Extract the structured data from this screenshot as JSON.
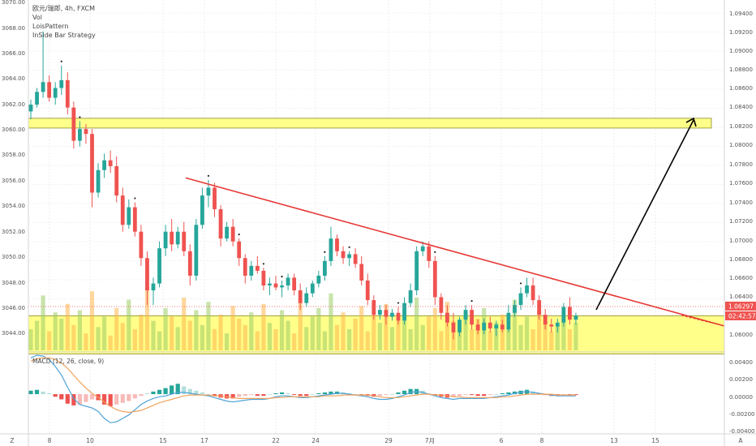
{
  "legend": {
    "symbol": "欧元/瑞郎, 4h, FXCM",
    "vol": "Vol",
    "pattern": "LoisPattern",
    "strategy": "InSide Bar Strategy",
    "macd": "MACD (12, 26, close, 9)"
  },
  "left_axis": {
    "ticks": [
      "3070.00",
      "3068.00",
      "3066.00",
      "3064.00",
      "3062.00",
      "3060.00",
      "3058.00",
      "3056.00",
      "3054.00",
      "3052.00",
      "3050.00",
      "3048.00",
      "3046.00",
      "3044.00"
    ]
  },
  "right_axis": {
    "ticks": [
      "1.09400",
      "1.09200",
      "1.09000",
      "1.08800",
      "1.08600",
      "1.08400",
      "1.08200",
      "1.08000",
      "1.07800",
      "1.07600",
      "1.07400",
      "1.07200",
      "1.07000",
      "1.06800",
      "1.06600",
      "1.06400",
      "1.06000"
    ],
    "price_label": "1.06297",
    "countdown_label": "02:42:57",
    "price_color": "#ef5350",
    "macd_ticks": [
      "0.00400",
      "0.00200",
      "0.00000",
      "-0.00200",
      "-0.00400"
    ],
    "corner_label": "A"
  },
  "x_axis": {
    "corner_label": "Z",
    "ticks": [
      "8",
      "10",
      "15",
      "17",
      "22",
      "24",
      "29",
      "7月",
      "6",
      "8",
      "13",
      "15"
    ]
  },
  "chart_data": {
    "type": "candlestick",
    "symbol": "欧元/瑞郎",
    "timeframe": "4h",
    "source": "FXCM",
    "price_scale": [
      1.0592,
      1.0952
    ],
    "candles": [
      {
        "o": 1.0838,
        "h": 1.085,
        "l": 1.083,
        "c": 1.0845
      },
      {
        "o": 1.0845,
        "h": 1.0862,
        "l": 1.0842,
        "c": 1.0858
      },
      {
        "o": 1.0858,
        "h": 1.092,
        "l": 1.0852,
        "c": 1.0868
      },
      {
        "o": 1.0868,
        "h": 1.0875,
        "l": 1.0848,
        "c": 1.0852
      },
      {
        "o": 1.0852,
        "h": 1.0868,
        "l": 1.0845,
        "c": 1.0862
      },
      {
        "o": 1.0862,
        "h": 1.0885,
        "l": 1.0855,
        "c": 1.087
      },
      {
        "o": 1.087,
        "h": 1.0878,
        "l": 1.0835,
        "c": 1.0842
      },
      {
        "o": 1.0842,
        "h": 1.0848,
        "l": 1.08,
        "c": 1.0808
      },
      {
        "o": 1.0808,
        "h": 1.0828,
        "l": 1.0802,
        "c": 1.082
      },
      {
        "o": 1.082,
        "h": 1.0825,
        "l": 1.0805,
        "c": 1.0815
      },
      {
        "o": 1.0815,
        "h": 1.082,
        "l": 1.074,
        "c": 1.0755
      },
      {
        "o": 1.0755,
        "h": 1.0785,
        "l": 1.075,
        "c": 1.0778
      },
      {
        "o": 1.0778,
        "h": 1.0795,
        "l": 1.077,
        "c": 1.0788
      },
      {
        "o": 1.0788,
        "h": 1.0798,
        "l": 1.0775,
        "c": 1.0782
      },
      {
        "o": 1.0782,
        "h": 1.0792,
        "l": 1.0745,
        "c": 1.0752
      },
      {
        "o": 1.0752,
        "h": 1.076,
        "l": 1.0715,
        "c": 1.0722
      },
      {
        "o": 1.0722,
        "h": 1.0748,
        "l": 1.0718,
        "c": 1.074
      },
      {
        "o": 1.074,
        "h": 1.0745,
        "l": 1.071,
        "c": 1.0715
      },
      {
        "o": 1.0715,
        "h": 1.0722,
        "l": 1.068,
        "c": 1.0688
      },
      {
        "o": 1.0688,
        "h": 1.0695,
        "l": 1.064,
        "c": 1.0655
      },
      {
        "o": 1.0655,
        "h": 1.0668,
        "l": 1.064,
        "c": 1.0662
      },
      {
        "o": 1.0662,
        "h": 1.0705,
        "l": 1.0658,
        "c": 1.0698
      },
      {
        "o": 1.0698,
        "h": 1.0722,
        "l": 1.069,
        "c": 1.0715
      },
      {
        "o": 1.0715,
        "h": 1.0728,
        "l": 1.0695,
        "c": 1.0702
      },
      {
        "o": 1.0702,
        "h": 1.072,
        "l": 1.0698,
        "c": 1.0715
      },
      {
        "o": 1.0715,
        "h": 1.0725,
        "l": 1.069,
        "c": 1.0695
      },
      {
        "o": 1.0695,
        "h": 1.0702,
        "l": 1.066,
        "c": 1.067
      },
      {
        "o": 1.067,
        "h": 1.0728,
        "l": 1.0665,
        "c": 1.0722
      },
      {
        "o": 1.0722,
        "h": 1.076,
        "l": 1.0718,
        "c": 1.0752
      },
      {
        "o": 1.0752,
        "h": 1.0768,
        "l": 1.074,
        "c": 1.076
      },
      {
        "o": 1.076,
        "h": 1.0765,
        "l": 1.073,
        "c": 1.0738
      },
      {
        "o": 1.0738,
        "h": 1.0742,
        "l": 1.07,
        "c": 1.0708
      },
      {
        "o": 1.0708,
        "h": 1.0725,
        "l": 1.0705,
        "c": 1.072
      },
      {
        "o": 1.072,
        "h": 1.0728,
        "l": 1.07,
        "c": 1.0705
      },
      {
        "o": 1.0705,
        "h": 1.0708,
        "l": 1.068,
        "c": 1.0688
      },
      {
        "o": 1.0688,
        "h": 1.0692,
        "l": 1.0662,
        "c": 1.067
      },
      {
        "o": 1.067,
        "h": 1.0685,
        "l": 1.0665,
        "c": 1.068
      },
      {
        "o": 1.068,
        "h": 1.069,
        "l": 1.0672,
        "c": 1.0675
      },
      {
        "o": 1.0675,
        "h": 1.0678,
        "l": 1.0655,
        "c": 1.066
      },
      {
        "o": 1.066,
        "h": 1.0668,
        "l": 1.065,
        "c": 1.0662
      },
      {
        "o": 1.0662,
        "h": 1.067,
        "l": 1.0655,
        "c": 1.0658
      },
      {
        "o": 1.0658,
        "h": 1.0665,
        "l": 1.0648,
        "c": 1.066
      },
      {
        "o": 1.066,
        "h": 1.0672,
        "l": 1.0655,
        "c": 1.0668
      },
      {
        "o": 1.0668,
        "h": 1.0672,
        "l": 1.065,
        "c": 1.0655
      },
      {
        "o": 1.0655,
        "h": 1.0662,
        "l": 1.0635,
        "c": 1.0642
      },
      {
        "o": 1.0642,
        "h": 1.0658,
        "l": 1.0638,
        "c": 1.0652
      },
      {
        "o": 1.0652,
        "h": 1.0665,
        "l": 1.0648,
        "c": 1.0662
      },
      {
        "o": 1.0662,
        "h": 1.0675,
        "l": 1.0658,
        "c": 1.067
      },
      {
        "o": 1.067,
        "h": 1.069,
        "l": 1.0665,
        "c": 1.0685
      },
      {
        "o": 1.0685,
        "h": 1.072,
        "l": 1.068,
        "c": 1.0708
      },
      {
        "o": 1.0708,
        "h": 1.0712,
        "l": 1.069,
        "c": 1.0695
      },
      {
        "o": 1.0695,
        "h": 1.07,
        "l": 1.0682,
        "c": 1.0688
      },
      {
        "o": 1.0688,
        "h": 1.0695,
        "l": 1.068,
        "c": 1.0692
      },
      {
        "o": 1.0692,
        "h": 1.0698,
        "l": 1.0678,
        "c": 1.0682
      },
      {
        "o": 1.0682,
        "h": 1.069,
        "l": 1.066,
        "c": 1.0665
      },
      {
        "o": 1.0665,
        "h": 1.0672,
        "l": 1.064,
        "c": 1.0645
      },
      {
        "o": 1.0645,
        "h": 1.065,
        "l": 1.0625,
        "c": 1.063
      },
      {
        "o": 1.063,
        "h": 1.064,
        "l": 1.0625,
        "c": 1.0635
      },
      {
        "o": 1.0635,
        "h": 1.064,
        "l": 1.062,
        "c": 1.0628
      },
      {
        "o": 1.0628,
        "h": 1.0636,
        "l": 1.0624,
        "c": 1.0632
      },
      {
        "o": 1.0632,
        "h": 1.0638,
        "l": 1.062,
        "c": 1.0624
      },
      {
        "o": 1.0624,
        "h": 1.0648,
        "l": 1.062,
        "c": 1.0642
      },
      {
        "o": 1.0642,
        "h": 1.0662,
        "l": 1.0638,
        "c": 1.0655
      },
      {
        "o": 1.0655,
        "h": 1.07,
        "l": 1.065,
        "c": 1.0695
      },
      {
        "o": 1.0695,
        "h": 1.0705,
        "l": 1.069,
        "c": 1.07
      },
      {
        "o": 1.07,
        "h": 1.0705,
        "l": 1.0678,
        "c": 1.0685
      },
      {
        "o": 1.0685,
        "h": 1.069,
        "l": 1.064,
        "c": 1.0648
      },
      {
        "o": 1.0648,
        "h": 1.0652,
        "l": 1.0625,
        "c": 1.0632
      },
      {
        "o": 1.0632,
        "h": 1.064,
        "l": 1.0618,
        "c": 1.0622
      },
      {
        "o": 1.0622,
        "h": 1.0632,
        "l": 1.0605,
        "c": 1.0612
      },
      {
        "o": 1.0612,
        "h": 1.0628,
        "l": 1.0608,
        "c": 1.0625
      },
      {
        "o": 1.0625,
        "h": 1.064,
        "l": 1.062,
        "c": 1.0635
      },
      {
        "o": 1.0635,
        "h": 1.064,
        "l": 1.0615,
        "c": 1.062
      },
      {
        "o": 1.062,
        "h": 1.0625,
        "l": 1.061,
        "c": 1.0614
      },
      {
        "o": 1.0614,
        "h": 1.0626,
        "l": 1.061,
        "c": 1.0622
      },
      {
        "o": 1.0622,
        "h": 1.0628,
        "l": 1.0612,
        "c": 1.0616
      },
      {
        "o": 1.0616,
        "h": 1.0624,
        "l": 1.0608,
        "c": 1.062
      },
      {
        "o": 1.062,
        "h": 1.0625,
        "l": 1.0612,
        "c": 1.0615
      },
      {
        "o": 1.0615,
        "h": 1.064,
        "l": 1.0612,
        "c": 1.0632
      },
      {
        "o": 1.0632,
        "h": 1.0645,
        "l": 1.0628,
        "c": 1.064
      },
      {
        "o": 1.064,
        "h": 1.0658,
        "l": 1.0635,
        "c": 1.0652
      },
      {
        "o": 1.0652,
        "h": 1.0668,
        "l": 1.0648,
        "c": 1.066
      },
      {
        "o": 1.066,
        "h": 1.0668,
        "l": 1.064,
        "c": 1.0645
      },
      {
        "o": 1.0645,
        "h": 1.065,
        "l": 1.0625,
        "c": 1.063
      },
      {
        "o": 1.063,
        "h": 1.0636,
        "l": 1.0615,
        "c": 1.062
      },
      {
        "o": 1.062,
        "h": 1.0626,
        "l": 1.0612,
        "c": 1.0618
      },
      {
        "o": 1.0618,
        "h": 1.0626,
        "l": 1.0612,
        "c": 1.0622
      },
      {
        "o": 1.0622,
        "h": 1.0642,
        "l": 1.0618,
        "c": 1.0638
      },
      {
        "o": 1.0638,
        "h": 1.0648,
        "l": 1.062,
        "c": 1.0625
      },
      {
        "o": 1.0625,
        "h": 1.0632,
        "l": 1.062,
        "c": 1.0629
      }
    ],
    "volume": [
      10,
      14,
      26,
      9,
      18,
      15,
      22,
      12,
      19,
      8,
      28,
      11,
      16,
      7,
      20,
      13,
      24,
      10,
      17,
      30,
      14,
      9,
      20,
      16,
      11,
      25,
      14,
      19,
      12,
      23,
      10,
      17,
      8,
      21,
      15,
      12,
      18,
      9,
      22,
      13,
      10,
      19,
      14,
      8,
      24,
      11,
      16,
      20,
      9,
      27,
      12,
      18,
      10,
      15,
      21,
      9,
      17,
      13,
      22,
      11,
      14,
      19,
      10,
      25,
      12,
      16,
      20,
      9,
      23,
      14,
      11,
      18,
      10,
      15,
      20,
      9,
      13,
      17,
      11,
      24,
      12,
      16,
      10,
      19,
      14,
      9,
      12,
      15,
      10,
      13
    ],
    "macd": {
      "histogram": [
        0.0004,
        0.0005,
        0.0003,
        0.0001,
        -0.0003,
        -0.0006,
        -0.0011,
        -0.0013,
        -0.0012,
        -0.0009,
        -0.0006,
        -0.0007,
        -0.0012,
        -0.0014,
        -0.0012,
        -0.001,
        -0.0008,
        -0.0005,
        -0.0002,
        0.0001,
        0.0003,
        0.0005,
        0.0007,
        0.001,
        0.0012,
        0.0009,
        0.0006,
        0.0004,
        0.0002,
        0.0,
        -0.0002,
        -0.0004,
        -0.0005,
        -0.0005,
        -0.0003,
        -0.0002,
        -0.0001,
        -0.0002,
        -0.0002,
        0.0,
        0.0001,
        0.0002,
        0.0001,
        -0.0001,
        -0.0002,
        -0.0002,
        0.0,
        0.0001,
        0.0002,
        0.0003,
        0.0003,
        0.0002,
        0.0001,
        0.0,
        -0.0001,
        -0.0002,
        -0.0003,
        -0.0002,
        -0.0001,
        0.0,
        0.0002,
        0.0004,
        0.0006,
        0.0006,
        0.0004,
        0.0001,
        -0.0002,
        -0.0003,
        -0.0004,
        -0.0003,
        -0.0002,
        -0.0001,
        -0.0001,
        -0.0002,
        -0.0002,
        -0.0001,
        0.0,
        0.0001,
        0.0002,
        0.0003,
        0.0004,
        0.0005,
        0.0003,
        0.0001,
        -0.0001,
        -0.0002,
        -0.0002,
        -0.0001,
        -0.0001,
        -0.0001
      ],
      "macd_line": [
        0.0042,
        0.0045,
        0.0044,
        0.004,
        0.0032,
        0.0022,
        0.0008,
        -0.0005,
        -0.0012,
        -0.0014,
        -0.0016,
        -0.002,
        -0.0028,
        -0.0033,
        -0.0032,
        -0.0028,
        -0.0024,
        -0.0018,
        -0.0012,
        -0.0008,
        -0.0005,
        -0.0003,
        -0.0002,
        0.0,
        0.0002,
        0.0002,
        0.0001,
        0.0,
        -0.0001,
        -0.0002,
        -0.0004,
        -0.0006,
        -0.0008,
        -0.0009,
        -0.0008,
        -0.0007,
        -0.0006,
        -0.0006,
        -0.0006,
        -0.0005,
        -0.0003,
        -0.0002,
        -0.0002,
        -0.0003,
        -0.0004,
        -0.0004,
        -0.0003,
        -0.0002,
        -0.0001,
        0.0,
        0.0001,
        0.0001,
        0.0,
        -0.0001,
        -0.0002,
        -0.0003,
        -0.0005,
        -0.0006,
        -0.0006,
        -0.0005,
        -0.0003,
        -0.0001,
        0.0002,
        0.0003,
        0.0002,
        0.0,
        -0.0002,
        -0.0004,
        -0.0005,
        -0.0006,
        -0.0005,
        -0.0005,
        -0.0005,
        -0.0005,
        -0.0005,
        -0.0004,
        -0.0003,
        -0.0002,
        -0.0001,
        0.0001,
        0.0002,
        0.0003,
        0.0002,
        0.0001,
        0.0,
        -0.0001,
        -0.0002,
        -0.0002,
        -0.0002,
        -0.0002
      ],
      "signal_line": [
        0.0038,
        0.0041,
        0.0042,
        0.0042,
        0.004,
        0.0036,
        0.003,
        0.0022,
        0.0014,
        0.0007,
        0.0001,
        -0.0004,
        -0.0009,
        -0.0014,
        -0.0018,
        -0.002,
        -0.0021,
        -0.002,
        -0.0019,
        -0.0016,
        -0.0013,
        -0.001,
        -0.0008,
        -0.0006,
        -0.0004,
        -0.0002,
        -0.0001,
        -0.0001,
        -0.0001,
        -0.0001,
        -0.0002,
        -0.0002,
        -0.0003,
        -0.0004,
        -0.0005,
        -0.0005,
        -0.0005,
        -0.0005,
        -0.0005,
        -0.0005,
        -0.0004,
        -0.0004,
        -0.0003,
        -0.0003,
        -0.0003,
        -0.0003,
        -0.0003,
        -0.0003,
        -0.0002,
        -0.0002,
        -0.0002,
        -0.0001,
        -0.0001,
        -0.0001,
        -0.0001,
        -0.0001,
        -0.0002,
        -0.0003,
        -0.0004,
        -0.0004,
        -0.0004,
        -0.0003,
        -0.0002,
        -0.0001,
        0.0,
        0.0,
        -0.0001,
        -0.0001,
        -0.0002,
        -0.0003,
        -0.0003,
        -0.0004,
        -0.0004,
        -0.0004,
        -0.0004,
        -0.0004,
        -0.0004,
        -0.0003,
        -0.0003,
        -0.0002,
        -0.0001,
        0.0,
        0.0,
        0.0,
        0.0,
        0.0,
        -0.0001,
        -0.0001,
        -0.0001,
        -0.0001
      ],
      "ylim": [
        -0.0044,
        0.0046
      ],
      "colors": {
        "macd": "#4fa3d8",
        "signal": "#f0a35e",
        "hist_pos": "#26a69a",
        "hist_pos_light": "#b2dfdb",
        "hist_neg": "#ef5350",
        "hist_neg_light": "#f8bbb8"
      }
    },
    "drawings": {
      "resistance_zone": {
        "from": 1.0821,
        "to": 1.0831,
        "color": "#ffff8a"
      },
      "support_zone": {
        "from": 1.059,
        "to": 1.0629,
        "color": "#ffff8a"
      },
      "trendline": {
        "from": {
          "bar": 45,
          "price": 1.077
        },
        "to": {
          "bar": 190,
          "price": 1.061
        },
        "color": "#e53935"
      },
      "projection": {
        "from": {
          "bar": 177,
          "price": 1.0627
        },
        "to": {
          "bar": 201,
          "price": 1.0823
        },
        "color": "#000000"
      }
    },
    "colors": {
      "up": "#26a69a",
      "down": "#ef5350",
      "vol_up": "#9ccc65",
      "vol_down": "#ffb74d"
    }
  }
}
